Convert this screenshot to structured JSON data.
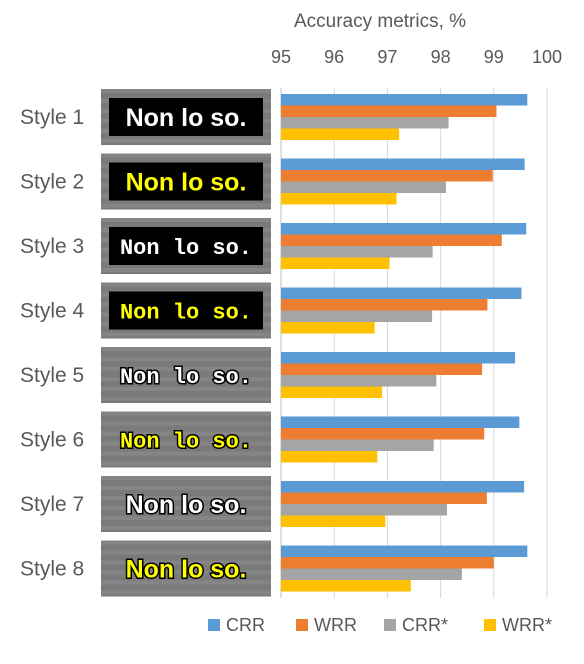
{
  "chart_data": {
    "type": "bar",
    "orientation": "horizontal",
    "title": "",
    "xlabel": "Accuracy metrics, %",
    "ylabel": "",
    "xlim": [
      95,
      100
    ],
    "xticks": [
      "95",
      "96",
      "97",
      "98",
      "99",
      "100"
    ],
    "grid": true,
    "legend_position": "bottom",
    "categories": [
      "Style 1",
      "Style 2",
      "Style 3",
      "Style 4",
      "Style 5",
      "Style 6",
      "Style 7",
      "Style 8"
    ],
    "series": [
      {
        "name": "CRR",
        "color": "#5b9bd5",
        "values": [
          99.63,
          99.58,
          99.61,
          99.52,
          99.4,
          99.48,
          99.57,
          99.63
        ]
      },
      {
        "name": "WRR",
        "color": "#ed7d31",
        "values": [
          99.05,
          98.98,
          99.15,
          98.88,
          98.78,
          98.82,
          98.87,
          99.0
        ]
      },
      {
        "name": "CRR*",
        "color": "#a5a5a5",
        "values": [
          98.15,
          98.1,
          97.85,
          97.84,
          97.92,
          97.87,
          98.12,
          98.4
        ]
      },
      {
        "name": "WRR*",
        "color": "#ffc000",
        "values": [
          97.22,
          97.17,
          97.04,
          96.76,
          96.9,
          96.81,
          96.96,
          97.44
        ]
      }
    ]
  },
  "thumbnails": [
    {
      "text": "Non lo so.",
      "text_color": "#ffffff",
      "box": "black",
      "font": "sans"
    },
    {
      "text": "Non lo so.",
      "text_color": "#ffff00",
      "box": "black",
      "font": "sans"
    },
    {
      "text": "Non lo so.",
      "text_color": "#ffffff",
      "box": "black",
      "font": "mono"
    },
    {
      "text": "Non lo so.",
      "text_color": "#ffff00",
      "box": "black",
      "font": "mono"
    },
    {
      "text": "Non lo so.",
      "text_color": "#ffffff",
      "box": "none",
      "font": "mono"
    },
    {
      "text": "Non lo so.",
      "text_color": "#ffff00",
      "box": "none",
      "font": "mono"
    },
    {
      "text": "Non lo so.",
      "text_color": "#ffffff",
      "box": "none",
      "font": "sans"
    },
    {
      "text": "Non lo so.",
      "text_color": "#ffff00",
      "box": "none",
      "font": "sans"
    }
  ]
}
